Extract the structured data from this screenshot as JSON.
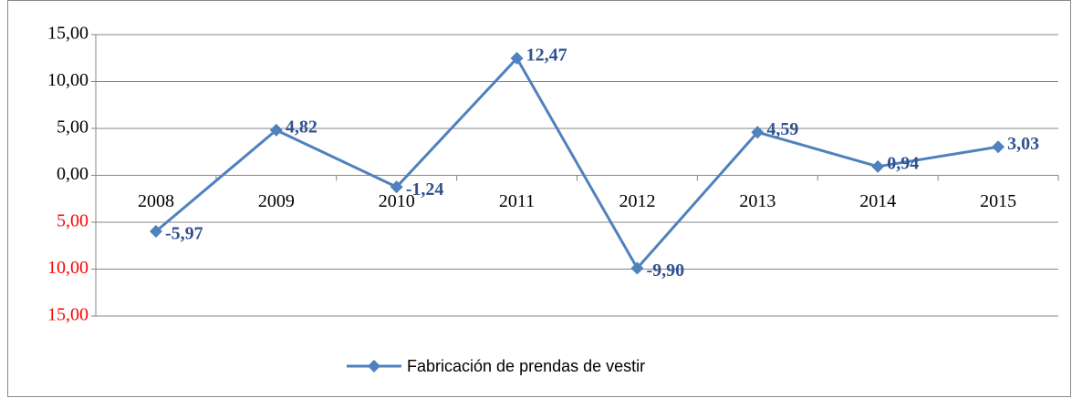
{
  "chart_data": {
    "type": "line",
    "categories": [
      "2008",
      "2009",
      "2010",
      "2011",
      "2012",
      "2013",
      "2014",
      "2015"
    ],
    "series": [
      {
        "name": "Fabricación de prendas de vestir",
        "color": "#4f81bd",
        "values": [
          -5.97,
          4.82,
          -1.24,
          12.47,
          -9.9,
          4.59,
          0.94,
          3.03
        ],
        "value_labels": [
          "-5,97",
          "4,82",
          "-1,24",
          "12,47",
          "-9,90",
          "4,59",
          "0,94",
          "3,03"
        ]
      }
    ],
    "ylim": [
      -15,
      15
    ],
    "yticks": [
      {
        "value": -15,
        "label": "15,00"
      },
      {
        "value": -10,
        "label": "10,00"
      },
      {
        "value": -5,
        "label": "5,00"
      },
      {
        "value": 0,
        "label": "0,00"
      },
      {
        "value": 5,
        "label": "5,00"
      },
      {
        "value": 10,
        "label": "10,00"
      },
      {
        "value": 15,
        "label": "15,00"
      }
    ],
    "negative_tick_color": "#ff0000",
    "value_label_color": "#2f528f",
    "grid": true,
    "legend": "bottom"
  }
}
